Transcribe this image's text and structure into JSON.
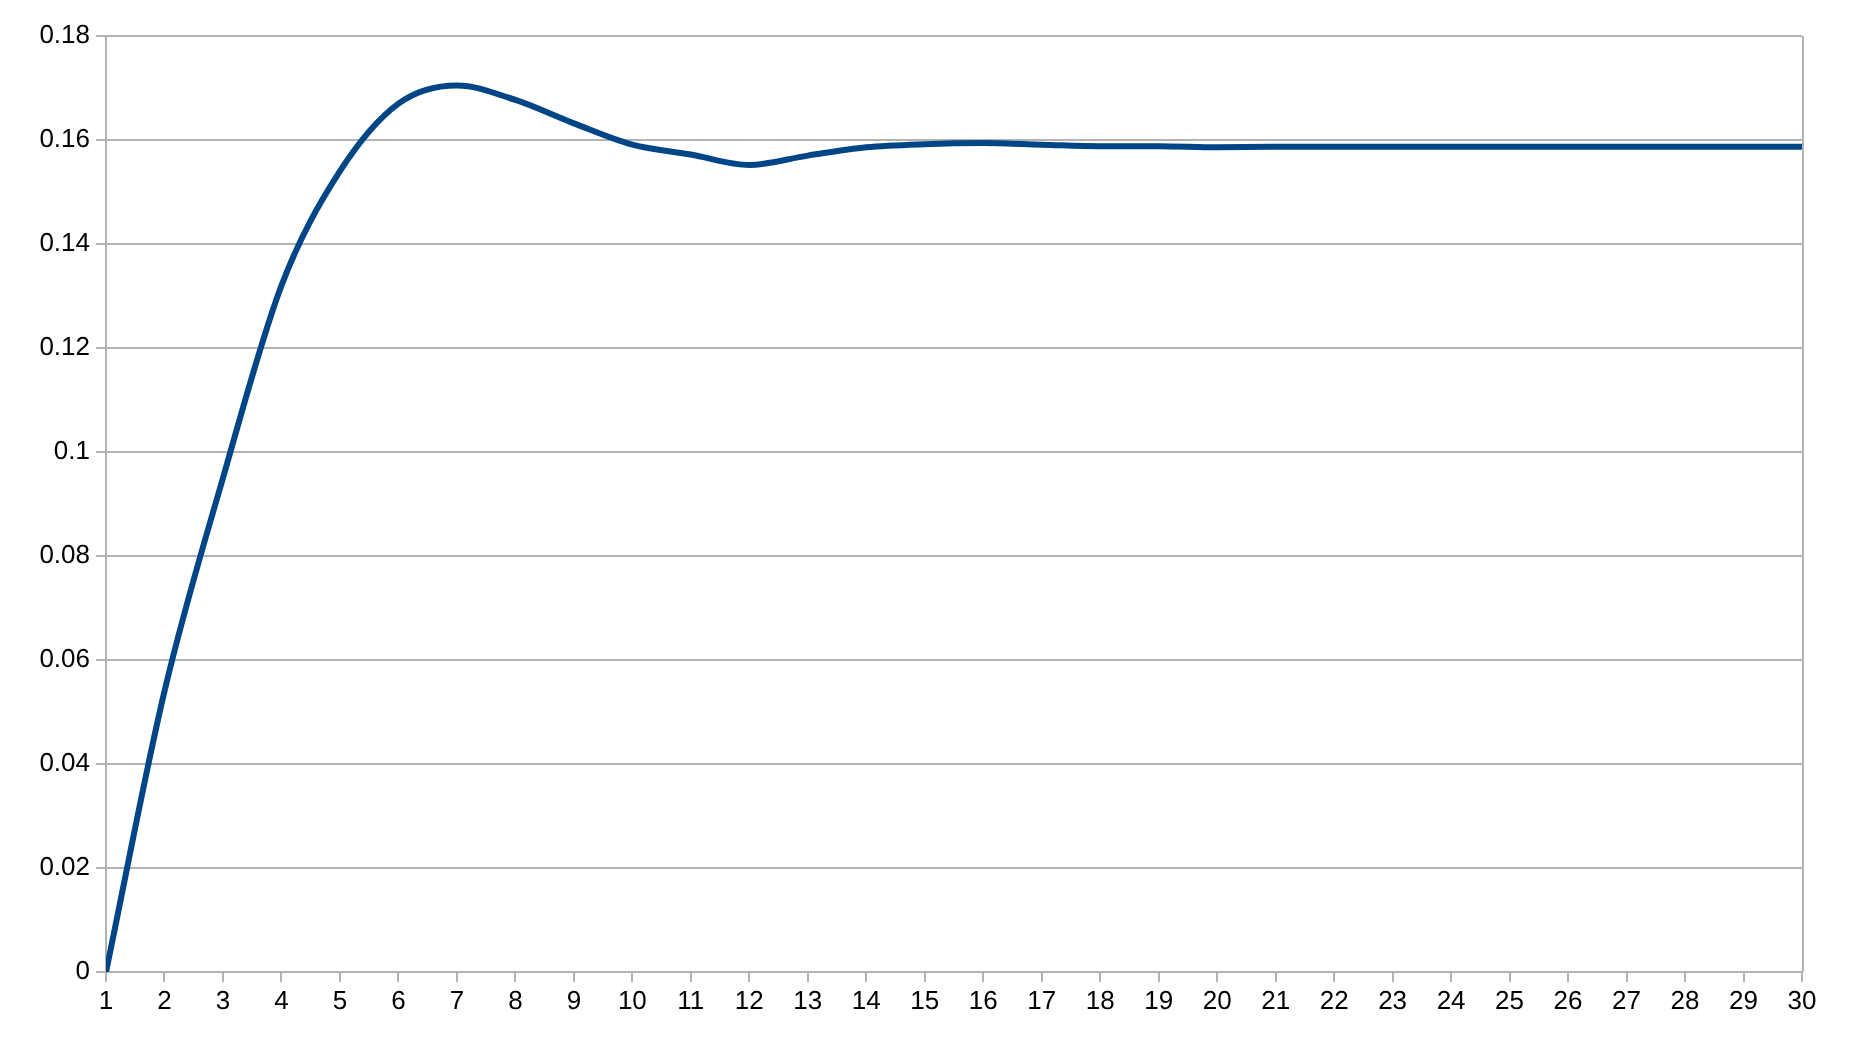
{
  "chart_data": {
    "type": "line",
    "x": [
      1,
      2,
      3,
      4,
      5,
      6,
      7,
      8,
      9,
      10,
      11,
      12,
      13,
      14,
      15,
      16,
      17,
      18,
      19,
      20,
      21,
      22,
      23,
      24,
      25,
      26,
      27,
      28,
      29,
      30
    ],
    "series": [
      {
        "color": "#004586",
        "values": [
          0,
          0.054,
          0.095,
          0.132,
          0.154,
          0.167,
          0.1705,
          0.1677,
          0.1632,
          0.1591,
          0.1572,
          0.1552,
          0.157,
          0.1586,
          0.1592,
          0.1594,
          0.1591,
          0.1588,
          0.1588,
          0.1586,
          0.1587,
          0.1587,
          0.1587,
          0.1587,
          0.1587,
          0.1587,
          0.1587,
          0.1587,
          0.1587,
          0.1587
        ]
      }
    ],
    "xlim": [
      1,
      30
    ],
    "xticks": [
      1,
      2,
      3,
      4,
      5,
      6,
      7,
      8,
      9,
      10,
      11,
      12,
      13,
      14,
      15,
      16,
      17,
      18,
      19,
      20,
      21,
      22,
      23,
      24,
      25,
      26,
      27,
      28,
      29,
      30
    ],
    "ylim": [
      0,
      0.18
    ],
    "yticks": [
      0,
      0.02,
      0.04,
      0.06,
      0.08,
      0.1,
      0.12,
      0.14,
      0.16,
      0.18
    ],
    "grid": "y",
    "marker": "none",
    "line_style": "solid"
  }
}
